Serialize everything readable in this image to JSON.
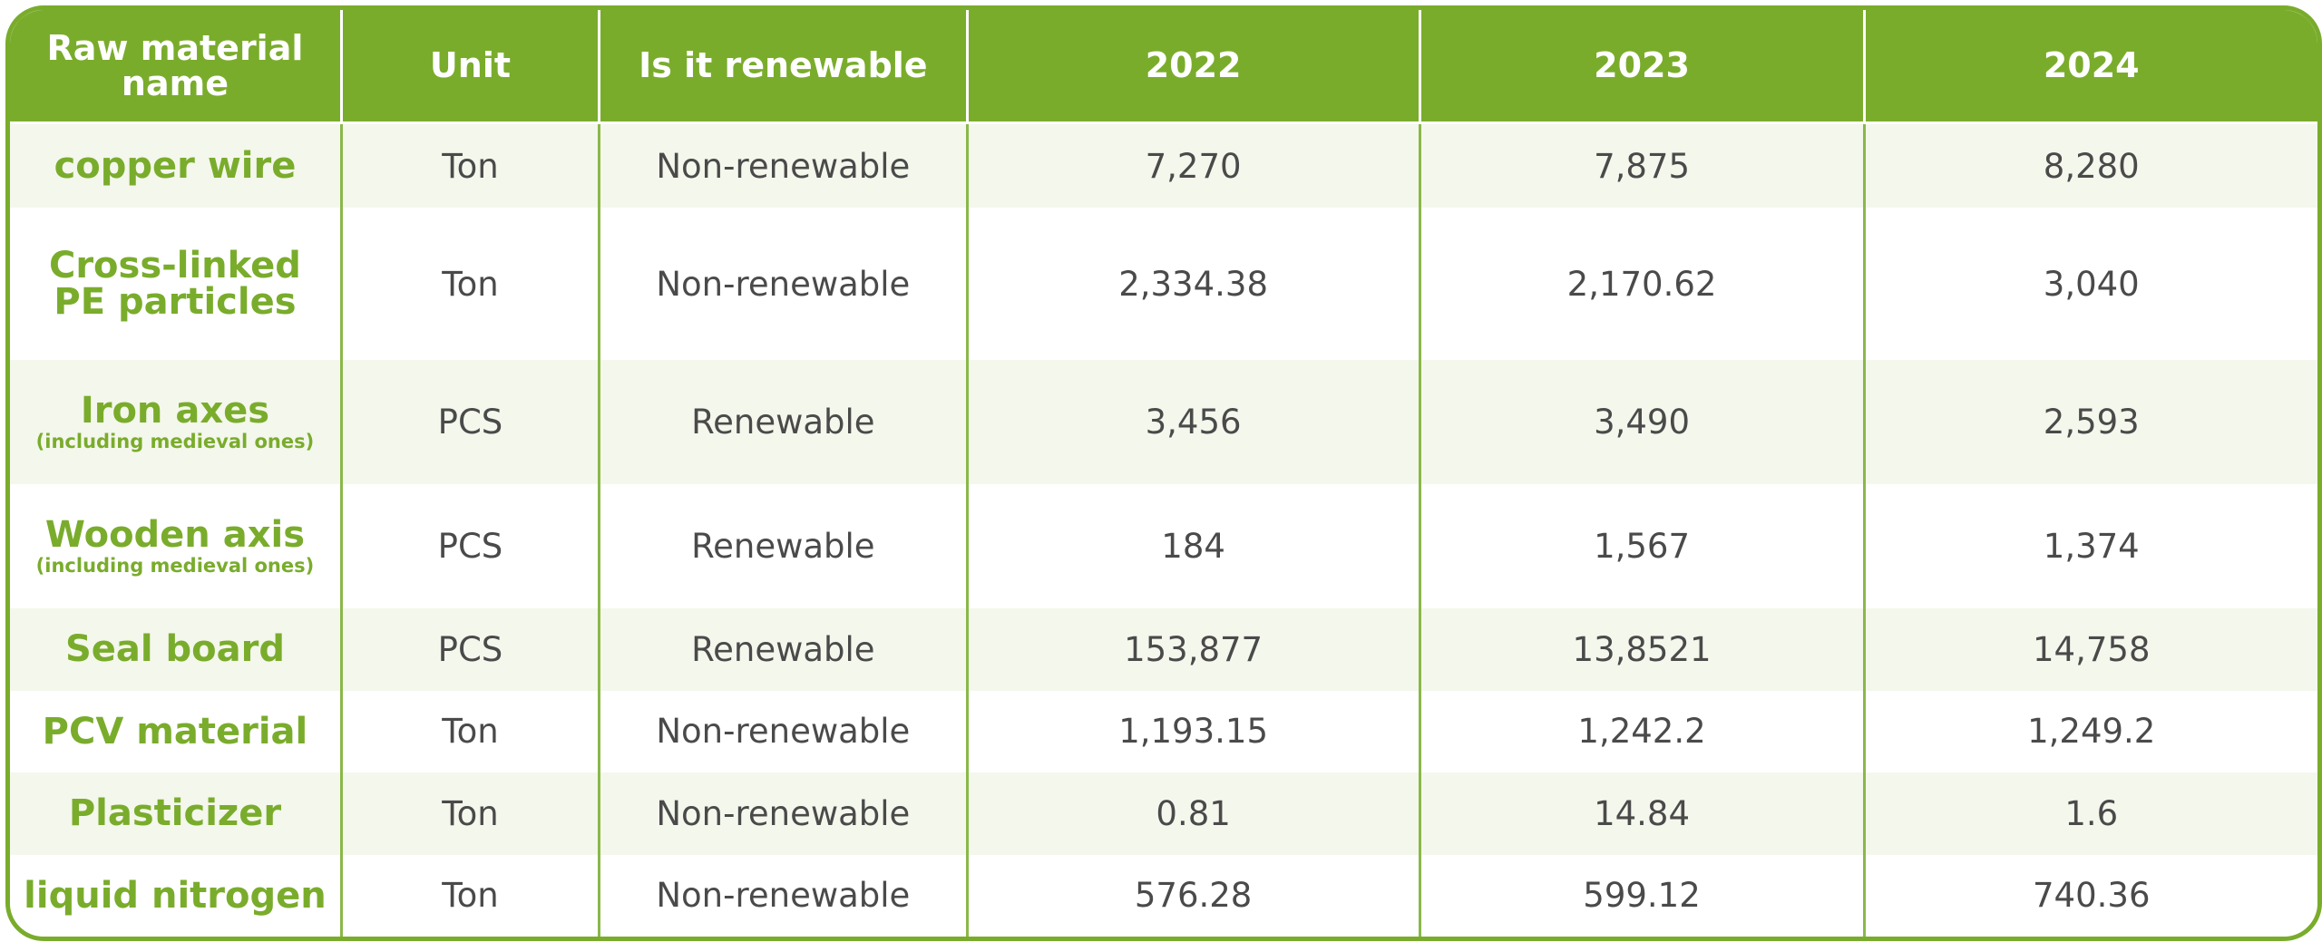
{
  "colors": {
    "accent": "#7aac2c",
    "row_shade": "#f4f7ec",
    "text": "#4a4a4a"
  },
  "chart_data": {
    "type": "table",
    "columns": [
      "Raw material name",
      "Unit",
      "Is it renewable",
      "2022",
      "2023",
      "2024"
    ],
    "rows": [
      {
        "name": "copper wire",
        "note": "",
        "unit": "Ton",
        "renewable": "Non-renewable",
        "y2022": "7,270",
        "y2023": "7,875",
        "y2024": "8,280"
      },
      {
        "name": "Cross-linked PE particles",
        "note": "",
        "unit": "Ton",
        "renewable": "Non-renewable",
        "y2022": "2,334.38",
        "y2023": "2,170.62",
        "y2024": "3,040"
      },
      {
        "name": "Iron axes",
        "note": "(including medieval ones)",
        "unit": "PCS",
        "renewable": "Renewable",
        "y2022": "3,456",
        "y2023": "3,490",
        "y2024": "2,593"
      },
      {
        "name": "Wooden axis",
        "note": "(including medieval ones)",
        "unit": "PCS",
        "renewable": "Renewable",
        "y2022": "184",
        "y2023": "1,567",
        "y2024": "1,374"
      },
      {
        "name": "Seal board",
        "note": "",
        "unit": "PCS",
        "renewable": "Renewable",
        "y2022": "153,877",
        "y2023": "13,8521",
        "y2024": "14,758"
      },
      {
        "name": "PCV material",
        "note": "",
        "unit": "Ton",
        "renewable": "Non-renewable",
        "y2022": "1,193.15",
        "y2023": "1,242.2",
        "y2024": "1,249.2"
      },
      {
        "name": "Plasticizer",
        "note": "",
        "unit": "Ton",
        "renewable": "Non-renewable",
        "y2022": "0.81",
        "y2023": "14.84",
        "y2024": "1.6"
      },
      {
        "name": "liquid nitrogen",
        "note": "",
        "unit": "Ton",
        "renewable": "Non-renewable",
        "y2022": "576.28",
        "y2023": "599.12",
        "y2024": "740.36"
      }
    ]
  }
}
